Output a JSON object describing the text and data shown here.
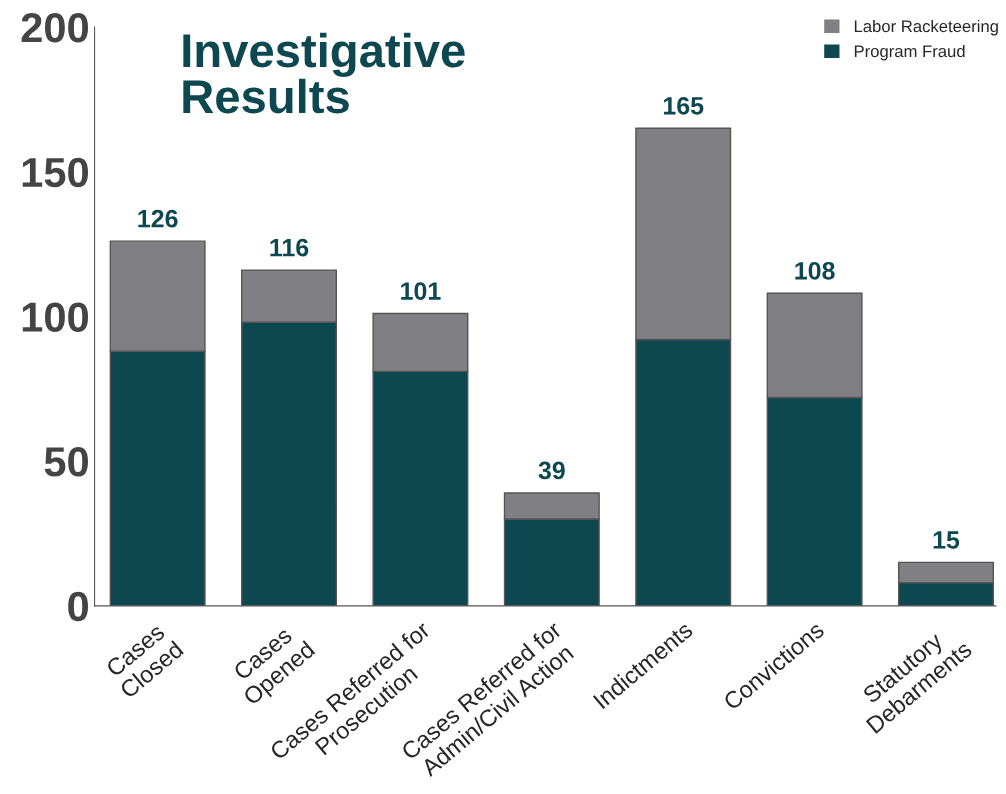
{
  "chart_data": {
    "type": "bar",
    "title": "Investigative\nResults",
    "stacked": true,
    "categories": [
      "Cases\nClosed",
      "Cases\nOpened",
      "Cases Referred for\nProsecution",
      "Cases Referred for\nAdmin/Civil Action",
      "Indictments",
      "Convictions",
      "Statutory\nDebarments"
    ],
    "series": [
      {
        "name": "Program Fraud",
        "color": "#0d4750",
        "values": [
          88,
          98,
          81,
          30,
          92,
          72,
          8
        ]
      },
      {
        "name": "Labor Racketeering",
        "color": "#808084",
        "values": [
          38,
          18,
          20,
          9,
          73,
          36,
          7
        ]
      }
    ],
    "totals": [
      "126",
      "116",
      "101",
      "39",
      "165",
      "108",
      "15"
    ],
    "ylim": [
      0,
      200
    ],
    "yticks": [
      0,
      50,
      100,
      150,
      200
    ],
    "grid": false,
    "legend": "top right"
  }
}
